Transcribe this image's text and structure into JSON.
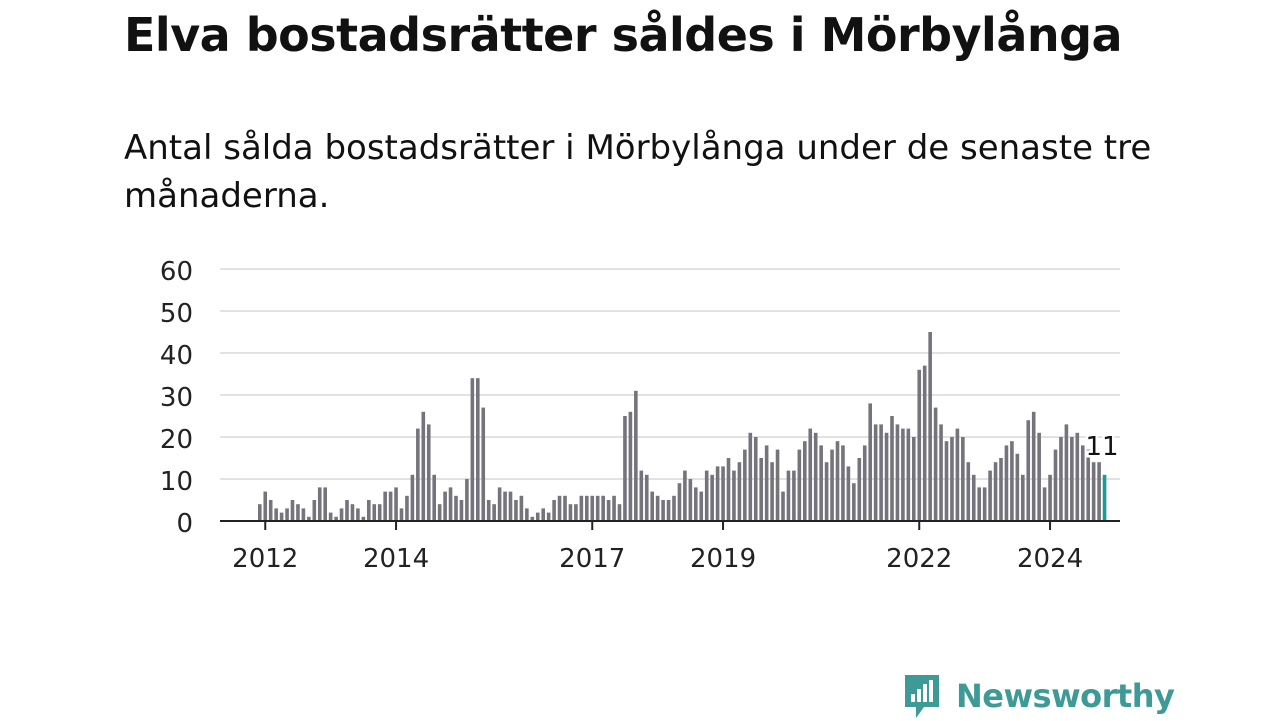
{
  "header": {
    "title": "Elva bostadsrätter såldes i Mörbylånga",
    "subtitle": "Antal sålda bostadsrätter i Mörbylånga under de senaste tre månaderna."
  },
  "brand": {
    "name": "Newsworthy",
    "color": "#3d9a96",
    "icon": "newsworthy-chart-icon"
  },
  "chart_data": {
    "type": "bar",
    "title": "",
    "xlabel": "",
    "ylabel": "",
    "ylim": [
      0,
      60
    ],
    "yticks": [
      0,
      10,
      20,
      30,
      40,
      50,
      60
    ],
    "grid": true,
    "bar_color": "#75737b",
    "highlight_color": "#1a9b93",
    "x_ticks": [
      {
        "label": "2012",
        "month": "2012-01"
      },
      {
        "label": "2014",
        "month": "2014-01"
      },
      {
        "label": "2017",
        "month": "2017-01"
      },
      {
        "label": "2019",
        "month": "2019-01"
      },
      {
        "label": "2022",
        "month": "2022-01"
      },
      {
        "label": "2024",
        "month": "2024-01"
      }
    ],
    "start_month": "2011-12",
    "values": [
      4,
      7,
      5,
      3,
      2,
      3,
      5,
      4,
      3,
      1,
      5,
      8,
      8,
      2,
      1,
      3,
      5,
      4,
      3,
      1,
      5,
      4,
      4,
      7,
      7,
      8,
      3,
      6,
      11,
      22,
      26,
      23,
      11,
      4,
      7,
      8,
      6,
      5,
      10,
      34,
      34,
      27,
      5,
      4,
      8,
      7,
      7,
      5,
      6,
      3,
      1,
      2,
      3,
      2,
      5,
      6,
      6,
      4,
      4,
      6,
      6,
      6,
      6,
      6,
      5,
      6,
      4,
      25,
      26,
      31,
      12,
      11,
      7,
      6,
      5,
      5,
      6,
      9,
      12,
      10,
      8,
      7,
      12,
      11,
      13,
      13,
      15,
      12,
      14,
      17,
      21,
      20,
      15,
      18,
      14,
      17,
      7,
      12,
      12,
      17,
      19,
      22,
      21,
      18,
      14,
      17,
      19,
      18,
      13,
      9,
      15,
      18,
      28,
      23,
      23,
      21,
      25,
      23,
      22,
      22,
      20,
      36,
      37,
      45,
      27,
      23,
      19,
      20,
      22,
      20,
      14,
      11,
      8,
      8,
      12,
      14,
      15,
      18,
      19,
      16,
      11,
      24,
      26,
      21,
      8,
      11,
      17,
      20,
      23,
      20,
      21,
      18,
      17,
      14,
      14,
      11
    ],
    "highlight_last": true,
    "data_labels": [
      {
        "index": 155,
        "text": "11"
      }
    ]
  }
}
